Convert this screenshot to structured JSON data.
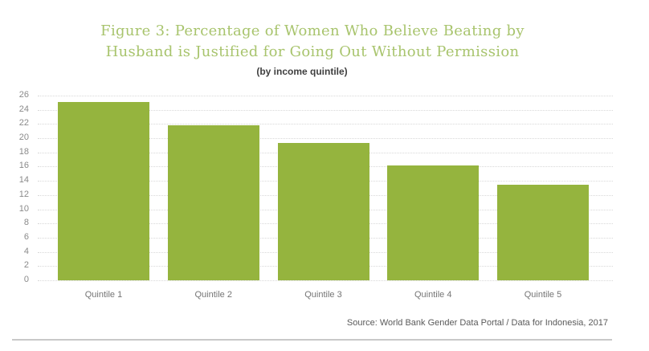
{
  "figure": {
    "title_lines": [
      "Figure 3: Percentage of Women Who Believe Beating by",
      "Husband is Justified for Going Out Without Permission"
    ],
    "subtitle": "(by income quintile)",
    "source": "Source: World Bank Gender Data Portal / Data for Indonesia, 2017"
  },
  "colors": {
    "bar": "#95b43e",
    "title_text": "#a8c46d",
    "subtitle_text": "#3f3f3f",
    "axis_tick_text": "#8a8a8a",
    "category_text": "#757575",
    "source_text": "#5a5a5a",
    "gridline": "#d8d8d8",
    "divider": "#c9c9c9"
  },
  "chart_data": {
    "type": "bar",
    "title": "Figure 3: Percentage of Women Who Believe Beating by Husband is Justified for Going Out Without Permission",
    "subtitle": "(by income quintile)",
    "categories": [
      "Quintile 1",
      "Quintile 2",
      "Quintile 3",
      "Quintile 4",
      "Quintile 5"
    ],
    "values": [
      25.1,
      21.8,
      19.3,
      16.2,
      13.5
    ],
    "xlabel": "",
    "ylabel": "",
    "ylim": [
      0,
      26
    ],
    "y_ticks": [
      0,
      2,
      4,
      6,
      8,
      10,
      12,
      14,
      16,
      18,
      20,
      22,
      24,
      26
    ],
    "grid": "horizontal-dotted",
    "legend": "none",
    "bar_color": "#95b43e"
  }
}
